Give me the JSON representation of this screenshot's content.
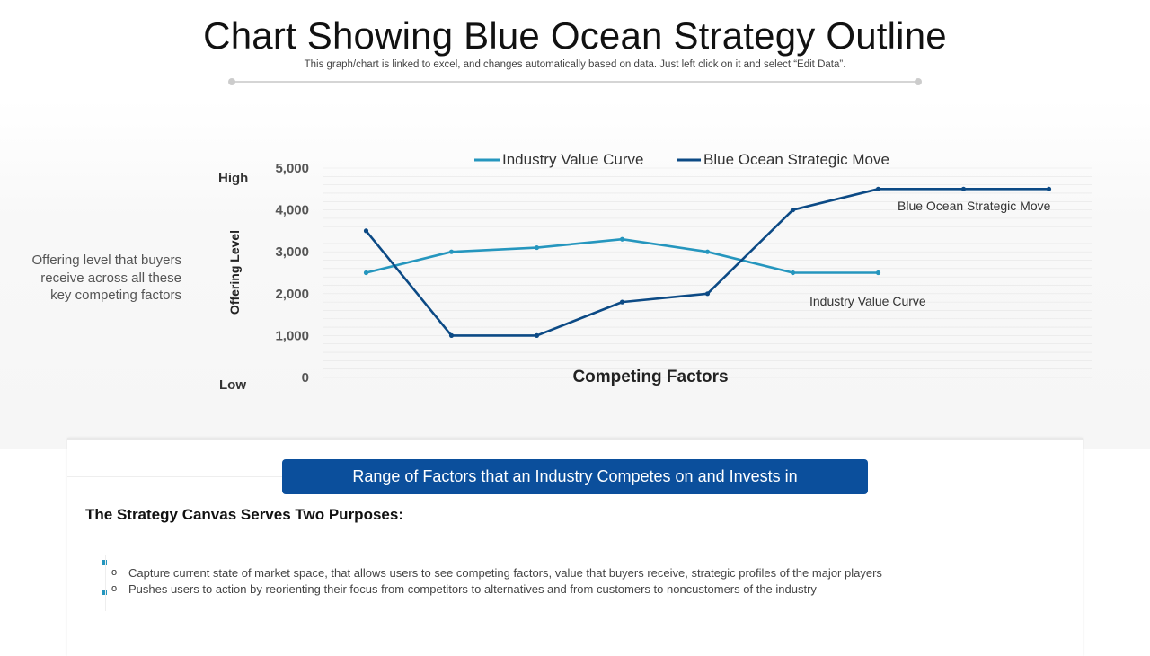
{
  "header": {
    "title": "Chart Showing Blue Ocean Strategy Outline",
    "subtitle": "This graph/chart is linked to excel, and changes automatically based on data. Just left click on it and select “Edit Data”."
  },
  "side_note": "Offering level that buyers receive across all these key competing factors",
  "axis_extremes": {
    "high": "High",
    "low": "Low"
  },
  "colors": {
    "industry": "#2596be",
    "blue_ocean": "#0c4a85",
    "banner": "#0b4f9c",
    "bullet_marker": "#2596be"
  },
  "chart_data": {
    "type": "line",
    "title": "",
    "xlabel": "Competing Factors",
    "ylabel": "Offering Level",
    "ylim": [
      0,
      5000
    ],
    "y_ticks": [
      0,
      1000,
      2000,
      3000,
      4000,
      5000
    ],
    "y_tick_labels": [
      "0",
      "1,000",
      "2,000",
      "3,000",
      "4,000",
      "5,000"
    ],
    "x": [
      1,
      2,
      3,
      4,
      5,
      6,
      7,
      8,
      9
    ],
    "grid": true,
    "legend": "top-center",
    "series": [
      {
        "name": "Industry Value Curve",
        "color_key": "industry",
        "values": [
          2500,
          3000,
          3100,
          3300,
          3000,
          2500,
          2500,
          null,
          null
        ]
      },
      {
        "name": "Blue Ocean Strategic Move",
        "color_key": "blue_ocean",
        "values": [
          3500,
          1000,
          1000,
          1800,
          2000,
          4000,
          4500,
          4500,
          4500
        ]
      }
    ],
    "annotations": [
      {
        "text": "Blue Ocean Strategic Move",
        "series": 1
      },
      {
        "text": "Industry Value Curve",
        "series": 0
      }
    ]
  },
  "card": {
    "banner": "Range of Factors that an Industry Competes on and Invests in",
    "heading": "The Strategy Canvas Serves Two Purposes:",
    "bullet_glyph": "o",
    "bullets": [
      "Capture current state of market space, that allows users to see competing factors, value that buyers receive, strategic profiles of the major players",
      "Pushes users to action by reorienting their focus from competitors to alternatives and from customers to noncustomers of the industry"
    ]
  }
}
